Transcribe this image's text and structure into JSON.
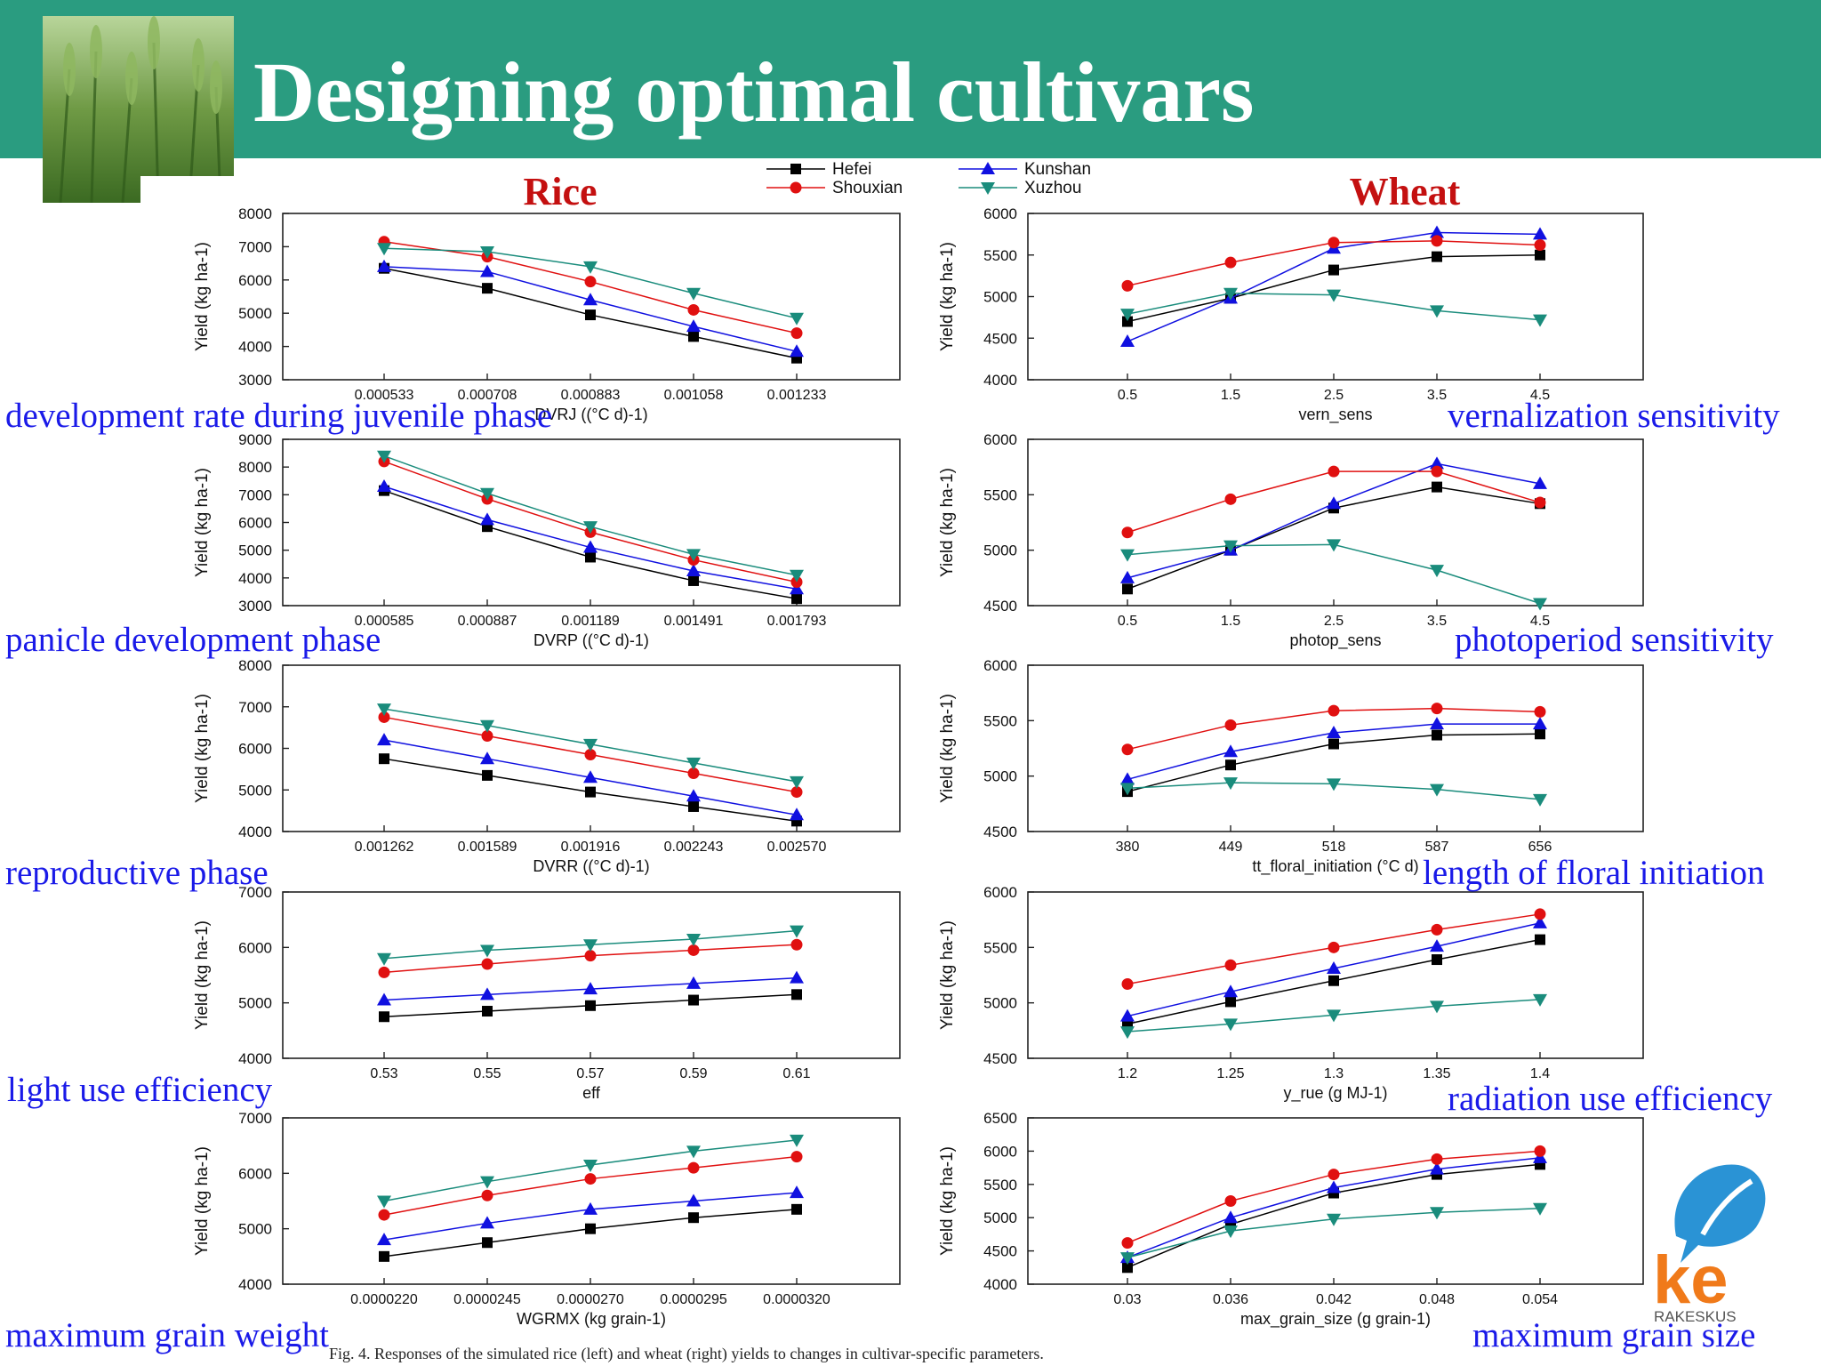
{
  "slide": {
    "title": "Designing optimal cultivars"
  },
  "panel_titles": {
    "rice": "Rice",
    "wheat": "Wheat"
  },
  "legend": [
    {
      "name": "Hefei",
      "marker": "square",
      "color": "#000000"
    },
    {
      "name": "Kunshan",
      "marker": "triangle-up",
      "color": "#1010e0"
    },
    {
      "name": "Shouxian",
      "marker": "circle",
      "color": "#e01010"
    },
    {
      "name": "Xuzhou",
      "marker": "triangle-down",
      "color": "#1a8c7c"
    }
  ],
  "caption": "Fig. 4. Responses of the simulated rice (left) and wheat (right) yields to changes in cultivar-specific parameters.",
  "logo": {
    "text": "RAKESKUS",
    "icon": "leaf-speech-bubble-icon",
    "letters": "ke"
  },
  "labels": {
    "row1_left": "development rate during juvenile phase",
    "row1_right": "vernalization sensitivity",
    "row2_left": "panicle development phase",
    "row2_right": "photoperiod sensitivity",
    "row3_left": "reproductive phase",
    "row3_right": "length of floral initiation",
    "row4_left": "light use efficiency",
    "row4_right": "radiation use efficiency",
    "row5_left": "maximum grain weight",
    "row5_right": "maximum grain size"
  },
  "chart_data": [
    {
      "type": "line",
      "crop": "rice",
      "ylabel": "Yield (kg ha-1)",
      "xlabel": "DVRJ ((°C d)-1)",
      "categories": [
        "0.000533",
        "0.000708",
        "0.000883",
        "0.001058",
        "0.001233"
      ],
      "ylim": [
        3000,
        8000
      ],
      "yticks": [
        3000,
        4000,
        5000,
        6000,
        7000,
        8000
      ],
      "series": [
        {
          "name": "Hefei",
          "values": [
            6350,
            5750,
            4950,
            4300,
            3650
          ]
        },
        {
          "name": "Kunshan",
          "values": [
            6400,
            6250,
            5400,
            4600,
            3850
          ]
        },
        {
          "name": "Shouxian",
          "values": [
            7150,
            6700,
            5950,
            5100,
            4400
          ]
        },
        {
          "name": "Xuzhou",
          "values": [
            6950,
            6850,
            6400,
            5600,
            4850
          ]
        }
      ]
    },
    {
      "type": "line",
      "crop": "wheat",
      "ylabel": "Yield (kg ha-1)",
      "xlabel": "vern_sens",
      "categories": [
        "0.5",
        "1.5",
        "2.5",
        "3.5",
        "4.5"
      ],
      "ylim": [
        4000,
        6000
      ],
      "yticks": [
        4000,
        4500,
        5000,
        5500,
        6000
      ],
      "series": [
        {
          "name": "Hefei",
          "values": [
            4700,
            4980,
            5320,
            5480,
            5500
          ]
        },
        {
          "name": "Kunshan",
          "values": [
            4460,
            4980,
            5580,
            5770,
            5750
          ]
        },
        {
          "name": "Shouxian",
          "values": [
            5130,
            5410,
            5650,
            5670,
            5620
          ]
        },
        {
          "name": "Xuzhou",
          "values": [
            4790,
            5040,
            5020,
            4830,
            4720
          ]
        }
      ]
    },
    {
      "type": "line",
      "crop": "rice",
      "ylabel": "Yield (kg ha-1)",
      "xlabel": "DVRP ((°C d)-1)",
      "categories": [
        "0.000585",
        "0.000887",
        "0.001189",
        "0.001491",
        "0.001793"
      ],
      "ylim": [
        3000,
        9000
      ],
      "yticks": [
        3000,
        4000,
        5000,
        6000,
        7000,
        8000,
        9000
      ],
      "series": [
        {
          "name": "Hefei",
          "values": [
            7150,
            5850,
            4750,
            3900,
            3250
          ]
        },
        {
          "name": "Kunshan",
          "values": [
            7300,
            6100,
            5100,
            4250,
            3600
          ]
        },
        {
          "name": "Shouxian",
          "values": [
            8200,
            6850,
            5650,
            4650,
            3850
          ]
        },
        {
          "name": "Xuzhou",
          "values": [
            8400,
            7050,
            5850,
            4850,
            4100
          ]
        }
      ]
    },
    {
      "type": "line",
      "crop": "wheat",
      "ylabel": "Yield (kg ha-1)",
      "xlabel": "photop_sens",
      "categories": [
        "0.5",
        "1.5",
        "2.5",
        "3.5",
        "4.5"
      ],
      "ylim": [
        4500,
        6000
      ],
      "yticks": [
        4500,
        5000,
        5500,
        6000
      ],
      "series": [
        {
          "name": "Hefei",
          "values": [
            4650,
            5000,
            5380,
            5570,
            5420
          ]
        },
        {
          "name": "Kunshan",
          "values": [
            4750,
            5000,
            5420,
            5780,
            5600
          ]
        },
        {
          "name": "Shouxian",
          "values": [
            5160,
            5460,
            5710,
            5710,
            5430
          ]
        },
        {
          "name": "Xuzhou",
          "values": [
            4960,
            5040,
            5050,
            4820,
            4520
          ]
        }
      ]
    },
    {
      "type": "line",
      "crop": "rice",
      "ylabel": "Yield (kg ha-1)",
      "xlabel": "DVRR ((°C d)-1)",
      "categories": [
        "0.001262",
        "0.001589",
        "0.001916",
        "0.002243",
        "0.002570"
      ],
      "ylim": [
        4000,
        8000
      ],
      "yticks": [
        4000,
        5000,
        6000,
        7000,
        8000
      ],
      "series": [
        {
          "name": "Hefei",
          "values": [
            5750,
            5350,
            4950,
            4600,
            4250
          ]
        },
        {
          "name": "Kunshan",
          "values": [
            6200,
            5750,
            5300,
            4850,
            4400
          ]
        },
        {
          "name": "Shouxian",
          "values": [
            6750,
            6300,
            5850,
            5400,
            4950
          ]
        },
        {
          "name": "Xuzhou",
          "values": [
            6950,
            6550,
            6100,
            5650,
            5200
          ]
        }
      ]
    },
    {
      "type": "line",
      "crop": "wheat",
      "ylabel": "Yield (kg ha-1)",
      "xlabel": "tt_floral_initiation (°C d)",
      "categories": [
        "380",
        "449",
        "518",
        "587",
        "656"
      ],
      "ylim": [
        4500,
        6000
      ],
      "yticks": [
        4500,
        5000,
        5500,
        6000
      ],
      "series": [
        {
          "name": "Hefei",
          "values": [
            4860,
            5100,
            5290,
            5370,
            5380
          ]
        },
        {
          "name": "Kunshan",
          "values": [
            4970,
            5220,
            5390,
            5470,
            5470
          ]
        },
        {
          "name": "Shouxian",
          "values": [
            5240,
            5460,
            5590,
            5610,
            5580
          ]
        },
        {
          "name": "Xuzhou",
          "values": [
            4890,
            4940,
            4930,
            4880,
            4790
          ]
        }
      ]
    },
    {
      "type": "line",
      "crop": "rice",
      "ylabel": "Yield (kg ha-1)",
      "xlabel": "eff",
      "categories": [
        "0.53",
        "0.55",
        "0.57",
        "0.59",
        "0.61"
      ],
      "ylim": [
        4000,
        7000
      ],
      "yticks": [
        4000,
        5000,
        6000,
        7000
      ],
      "series": [
        {
          "name": "Hefei",
          "values": [
            4750,
            4850,
            4950,
            5050,
            5150
          ]
        },
        {
          "name": "Kunshan",
          "values": [
            5050,
            5150,
            5250,
            5350,
            5450
          ]
        },
        {
          "name": "Shouxian",
          "values": [
            5550,
            5700,
            5850,
            5950,
            6050
          ]
        },
        {
          "name": "Xuzhou",
          "values": [
            5800,
            5950,
            6050,
            6150,
            6300
          ]
        }
      ]
    },
    {
      "type": "line",
      "crop": "wheat",
      "ylabel": "Yield (kg ha-1)",
      "xlabel": "y_rue (g MJ-1)",
      "categories": [
        "1.2",
        "1.25",
        "1.3",
        "1.35",
        "1.4"
      ],
      "ylim": [
        4500,
        6000
      ],
      "yticks": [
        4500,
        5000,
        5500,
        6000
      ],
      "series": [
        {
          "name": "Hefei",
          "values": [
            4810,
            5010,
            5200,
            5390,
            5570
          ]
        },
        {
          "name": "Kunshan",
          "values": [
            4880,
            5100,
            5310,
            5510,
            5720
          ]
        },
        {
          "name": "Shouxian",
          "values": [
            5170,
            5340,
            5500,
            5660,
            5800
          ]
        },
        {
          "name": "Xuzhou",
          "values": [
            4740,
            4810,
            4890,
            4970,
            5030
          ]
        }
      ]
    },
    {
      "type": "line",
      "crop": "rice",
      "ylabel": "Yield (kg ha-1)",
      "xlabel": "WGRMX (kg grain-1)",
      "categories": [
        "0.0000220",
        "0.0000245",
        "0.0000270",
        "0.0000295",
        "0.0000320"
      ],
      "ylim": [
        4000,
        7000
      ],
      "yticks": [
        4000,
        5000,
        6000,
        7000
      ],
      "series": [
        {
          "name": "Hefei",
          "values": [
            4500,
            4750,
            5000,
            5200,
            5350
          ]
        },
        {
          "name": "Kunshan",
          "values": [
            4800,
            5100,
            5350,
            5500,
            5650
          ]
        },
        {
          "name": "Shouxian",
          "values": [
            5250,
            5600,
            5900,
            6100,
            6300
          ]
        },
        {
          "name": "Xuzhou",
          "values": [
            5500,
            5850,
            6150,
            6400,
            6600
          ]
        }
      ]
    },
    {
      "type": "line",
      "crop": "wheat",
      "ylabel": "Yield (kg ha-1)",
      "xlabel": "max_grain_size (g grain-1)",
      "categories": [
        "0.03",
        "0.036",
        "0.042",
        "0.048",
        "0.054"
      ],
      "ylim": [
        4000,
        6500
      ],
      "yticks": [
        4000,
        4500,
        5000,
        5500,
        6000,
        6500
      ],
      "series": [
        {
          "name": "Hefei",
          "values": [
            4250,
            4900,
            5370,
            5650,
            5800
          ]
        },
        {
          "name": "Kunshan",
          "values": [
            4400,
            5000,
            5450,
            5730,
            5900
          ]
        },
        {
          "name": "Shouxian",
          "values": [
            4620,
            5250,
            5650,
            5880,
            6000
          ]
        },
        {
          "name": "Xuzhou",
          "values": [
            4400,
            4800,
            4980,
            5080,
            5140
          ]
        }
      ]
    }
  ]
}
